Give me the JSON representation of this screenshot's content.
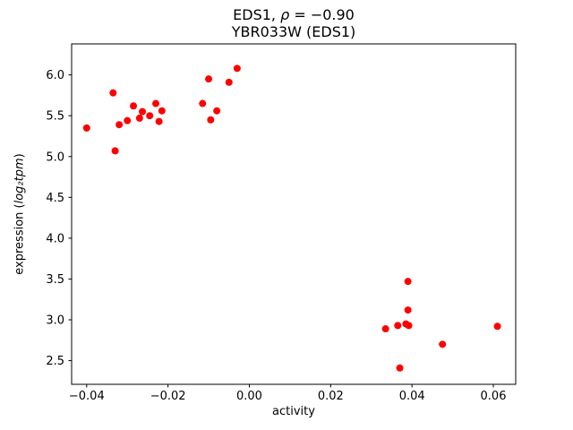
{
  "chart_data": {
    "type": "scatter",
    "title_prefix": "EDS1, ",
    "title_rho": "ρ",
    "title_suffix": " = −0.90",
    "title_line2": "YBR033W (EDS1)",
    "xlabel": "activity",
    "ylabel_prefix": "expression (",
    "ylabel_math": "log₂tpm",
    "ylabel_suffix": ")",
    "marker_color": "#ff0000",
    "axis_color": "#000000",
    "xlim": [
      -0.0437,
      0.0655
    ],
    "ylim": [
      2.21,
      6.38
    ],
    "xticks": [
      {
        "value": -0.04,
        "label": "−0.04"
      },
      {
        "value": -0.02,
        "label": "−0.02"
      },
      {
        "value": 0.0,
        "label": "0.00"
      },
      {
        "value": 0.02,
        "label": "0.02"
      },
      {
        "value": 0.04,
        "label": "0.04"
      },
      {
        "value": 0.06,
        "label": "0.06"
      }
    ],
    "yticks": [
      {
        "value": 2.5,
        "label": "2.5"
      },
      {
        "value": 3.0,
        "label": "3.0"
      },
      {
        "value": 3.5,
        "label": "3.5"
      },
      {
        "value": 4.0,
        "label": "4.0"
      },
      {
        "value": 4.5,
        "label": "4.5"
      },
      {
        "value": 5.0,
        "label": "5.0"
      },
      {
        "value": 5.5,
        "label": "5.5"
      },
      {
        "value": 6.0,
        "label": "6.0"
      }
    ],
    "points": [
      [
        -0.04,
        5.35
      ],
      [
        -0.0335,
        5.78
      ],
      [
        -0.033,
        5.07
      ],
      [
        -0.032,
        5.39
      ],
      [
        -0.03,
        5.44
      ],
      [
        -0.0285,
        5.62
      ],
      [
        -0.027,
        5.47
      ],
      [
        -0.0263,
        5.55
      ],
      [
        -0.0245,
        5.5
      ],
      [
        -0.023,
        5.65
      ],
      [
        -0.0222,
        5.43
      ],
      [
        -0.0215,
        5.56
      ],
      [
        -0.0115,
        5.65
      ],
      [
        -0.01,
        5.95
      ],
      [
        -0.0095,
        5.45
      ],
      [
        -0.008,
        5.56
      ],
      [
        -0.005,
        5.91
      ],
      [
        -0.003,
        6.08
      ],
      [
        0.0335,
        2.89
      ],
      [
        0.0365,
        2.93
      ],
      [
        0.037,
        2.41
      ],
      [
        0.0385,
        2.95
      ],
      [
        0.0392,
        2.93
      ],
      [
        0.039,
        3.12
      ],
      [
        0.039,
        3.47
      ],
      [
        0.0475,
        2.7
      ],
      [
        0.061,
        2.92
      ]
    ]
  }
}
